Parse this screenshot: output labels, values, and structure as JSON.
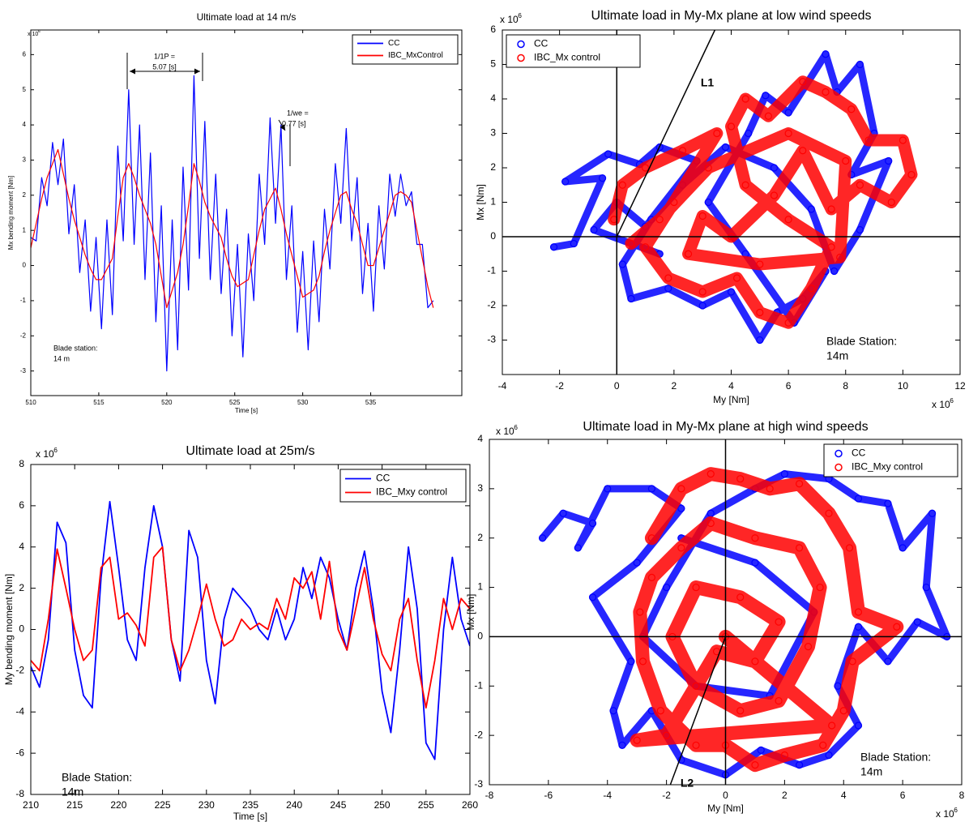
{
  "chart_data": [
    {
      "type": "line",
      "title": "Ultimate load at 14 m/s",
      "x_label": "Time [s]",
      "y_label": "Mx bending moment [Nm]",
      "y_multiplier": {
        "base": "x 10",
        "exponent": "6"
      },
      "xlim": [
        510,
        541.7
      ],
      "xticks": [
        510,
        515,
        520,
        525,
        530,
        535
      ],
      "ylim": [
        -3.7,
        6.7
      ],
      "yticks": [
        -3,
        -2,
        -1,
        0,
        1,
        2,
        3,
        4,
        5,
        6
      ],
      "grid": false,
      "legend": "upper right",
      "x": [
        510,
        510.4,
        510.8,
        511.2,
        511.6,
        512,
        512.4,
        512.8,
        513.2,
        513.6,
        514,
        514.4,
        514.8,
        515.2,
        515.6,
        516,
        516.4,
        516.8,
        517.2,
        517.6,
        518,
        518.4,
        518.8,
        519.2,
        519.6,
        520,
        520.4,
        520.8,
        521.2,
        521.6,
        522,
        522.4,
        522.8,
        523.2,
        523.6,
        524,
        524.4,
        524.8,
        525.2,
        525.6,
        526,
        526.4,
        526.8,
        527.2,
        527.6,
        528,
        528.4,
        528.8,
        529.2,
        529.6,
        530,
        530.4,
        530.8,
        531.2,
        531.6,
        532,
        532.4,
        532.8,
        533.2,
        533.6,
        534,
        534.4,
        534.8,
        535.2,
        535.6,
        536,
        536.4,
        536.8,
        537.2,
        537.6,
        538,
        538.4,
        538.8,
        539.2,
        539.6
      ],
      "series": [
        {
          "name": "CC",
          "color": "#0000ff",
          "values": [
            0.8,
            0.7,
            2.5,
            1.7,
            3.5,
            2.3,
            3.6,
            0.9,
            2.3,
            -0.2,
            1.3,
            -1.3,
            0.8,
            -1.8,
            1.3,
            -1.4,
            3.4,
            0.7,
            5.0,
            0.6,
            4.0,
            -0.4,
            3.2,
            -1.6,
            1.7,
            -3.0,
            1.3,
            -2.4,
            2.8,
            -0.7,
            5.4,
            0.2,
            4.1,
            -0.4,
            2.6,
            -0.8,
            1.6,
            -2.0,
            0.6,
            -2.6,
            0.9,
            -1.0,
            2.6,
            0.6,
            4.2,
            1.2,
            4.0,
            -0.4,
            1.7,
            -1.9,
            0.4,
            -2.4,
            0.7,
            -1.6,
            1.6,
            -0.1,
            2.9,
            1.2,
            3.9,
            0.7,
            2.5,
            -0.8,
            1.2,
            -1.3,
            1.7,
            -0.1,
            2.6,
            1.4,
            2.6,
            1.7,
            2.1,
            0.6,
            0.6,
            -1.2,
            -1.0
          ]
        },
        {
          "name": "IBC_MxControl",
          "color": "#ff0000",
          "values": [
            0.5,
            1.2,
            1.9,
            2.5,
            2.9,
            3.3,
            2.6,
            1.9,
            1.3,
            0.8,
            0.3,
            -0.1,
            -0.4,
            -0.4,
            -0.1,
            0.2,
            1.4,
            2.5,
            2.9,
            2.5,
            2.0,
            1.6,
            1.2,
            0.6,
            -0.3,
            -1.2,
            -0.7,
            -0.2,
            0.6,
            1.7,
            2.9,
            2.4,
            1.8,
            1.4,
            1.1,
            0.8,
            0.2,
            -0.3,
            -0.6,
            -0.5,
            -0.4,
            0.3,
            1.0,
            1.6,
            1.9,
            2.2,
            1.6,
            0.9,
            0.3,
            -0.3,
            -0.9,
            -0.8,
            -0.7,
            -0.3,
            0.4,
            1.0,
            1.5,
            2.0,
            2.1,
            1.6,
            1.2,
            0.6,
            0.0,
            0.0,
            0.5,
            1.0,
            1.5,
            2.0,
            2.1,
            2.0,
            1.8,
            1.0,
            0.2,
            -0.6,
            -1.2
          ]
        }
      ],
      "annotations": [
        [
          "1/1P =",
          "5.07 [s]"
        ],
        [
          "1/we =",
          "0.77 [s]"
        ],
        [
          "Blade station:",
          "14 m"
        ]
      ]
    },
    {
      "type": "scatter",
      "title": "Ultimate load in My-Mx plane at low wind speeds",
      "x_label": "My [Nm]",
      "y_label": "Mx [Nm]",
      "x_multiplier": {
        "base": "x 10",
        "exponent": "6"
      },
      "y_multiplier": {
        "base": "x 10",
        "exponent": "6"
      },
      "xlim": [
        -4,
        12
      ],
      "xticks": [
        -4,
        -2,
        0,
        2,
        4,
        6,
        8,
        10,
        12
      ],
      "ylim": [
        -4,
        6
      ],
      "yticks": [
        -3,
        -2,
        -1,
        0,
        1,
        2,
        3,
        4,
        5,
        6
      ],
      "grid": false,
      "zero_lines": true,
      "legend": "upper left",
      "series": [
        {
          "name": "CC",
          "color": "#0000ff",
          "x": [
            -2.2,
            -1.5,
            -0.5,
            -1.8,
            -0.3,
            0.8,
            1.5,
            2.8,
            1.2,
            0.2,
            0.5,
            1.8,
            3.0,
            4.0,
            5.0,
            5.6,
            6.5,
            7.3,
            6.2,
            4.5,
            3.2,
            4.6,
            5.2,
            6.0,
            7.3,
            7.7,
            8.5,
            9.0,
            8.2,
            9.5,
            8.5,
            7.6,
            6.8,
            5.5,
            3.8,
            2.3,
            1.0,
            0.0,
            -0.8,
            1.5
          ],
          "values": [
            -0.3,
            -0.2,
            1.7,
            1.6,
            2.4,
            2.1,
            2.6,
            2.2,
            0.5,
            -0.8,
            -1.8,
            -1.5,
            -2.0,
            -1.6,
            -3.0,
            -2.2,
            -1.8,
            -1.0,
            -2.5,
            -0.5,
            1.0,
            3.0,
            4.1,
            3.6,
            5.3,
            4.2,
            5.0,
            3.0,
            1.8,
            2.2,
            0.2,
            -1.0,
            0.8,
            2.0,
            2.6,
            1.5,
            0.3,
            1.0,
            0.2,
            -0.5
          ]
        },
        {
          "name": "IBC_Mx control",
          "color": "#ff0000",
          "x": [
            -0.1,
            0.2,
            1.0,
            2.3,
            3.5,
            2.0,
            1.0,
            1.8,
            3.0,
            4.2,
            5.0,
            6.0,
            6.8,
            7.5,
            6.0,
            4.5,
            4.0,
            4.5,
            5.3,
            6.5,
            7.3,
            8.2,
            8.8,
            10.0,
            10.3,
            9.6,
            8.5,
            7.5,
            6.5,
            5.5,
            4.0,
            3.0,
            2.5,
            5.0,
            7.8,
            8.0,
            6.0,
            3.2,
            1.5,
            0.5
          ],
          "values": [
            0.5,
            1.5,
            2.0,
            2.5,
            3.0,
            1.0,
            -0.3,
            -1.2,
            -1.6,
            -1.2,
            -2.2,
            -2.5,
            -1.5,
            -0.3,
            0.5,
            1.5,
            3.2,
            4.0,
            3.5,
            4.5,
            4.2,
            3.7,
            2.8,
            2.8,
            1.8,
            1.0,
            1.5,
            0.8,
            2.5,
            1.2,
            0.0,
            0.6,
            -0.5,
            -0.8,
            -0.6,
            2.2,
            3.0,
            2.0,
            0.5,
            -0.2
          ]
        }
      ],
      "reference_lines": [
        {
          "label": "L1",
          "x": [
            0,
            3.43
          ],
          "y": [
            0,
            6
          ]
        }
      ],
      "annotations": [
        [
          "Blade Station:",
          "14m"
        ]
      ]
    },
    {
      "type": "line",
      "title": "Ultimate load at 25m/s",
      "x_label": "Time [s]",
      "y_label": "My bending moment [Nm]",
      "y_multiplier": {
        "base": "x 10",
        "exponent": "6"
      },
      "xlim": [
        210,
        260
      ],
      "xticks": [
        210,
        215,
        220,
        225,
        230,
        235,
        240,
        245,
        250,
        255,
        260
      ],
      "ylim": [
        -8,
        8
      ],
      "yticks": [
        -8,
        -6,
        -4,
        -2,
        0,
        2,
        4,
        6,
        8
      ],
      "grid": false,
      "legend": "upper right",
      "x": [
        210,
        211,
        212,
        213,
        214,
        215,
        216,
        217,
        218,
        219,
        220,
        221,
        222,
        223,
        224,
        225,
        226,
        227,
        228,
        229,
        230,
        231,
        232,
        233,
        234,
        235,
        236,
        237,
        238,
        239,
        240,
        241,
        242,
        243,
        244,
        245,
        246,
        247,
        248,
        249,
        250,
        251,
        252,
        253,
        254,
        255,
        256,
        257,
        258,
        259,
        260
      ],
      "series": [
        {
          "name": "CC",
          "color": "#0000ff",
          "values": [
            -1.8,
            -2.8,
            -0.5,
            5.2,
            4.2,
            -1.0,
            -3.2,
            -3.8,
            2.5,
            6.2,
            3.0,
            -0.5,
            -1.5,
            3.0,
            6.0,
            4.0,
            -0.5,
            -2.5,
            4.8,
            3.5,
            -1.5,
            -3.6,
            0.5,
            2.0,
            1.5,
            1.0,
            0.0,
            -0.5,
            1.0,
            -0.5,
            0.5,
            3.0,
            1.5,
            3.5,
            2.5,
            0.5,
            -1.0,
            2.0,
            3.8,
            1.0,
            -3.0,
            -5.0,
            -1.0,
            4.0,
            1.0,
            -5.5,
            -6.3,
            0.0,
            3.5,
            0.5,
            -0.8
          ]
        },
        {
          "name": "IBC_Mxy control",
          "color": "#ff0000",
          "values": [
            -1.5,
            -2.0,
            0.5,
            3.9,
            2.0,
            0.0,
            -1.5,
            -1.0,
            3.0,
            3.5,
            0.5,
            0.8,
            0.2,
            -0.8,
            3.5,
            4.0,
            -0.5,
            -2.0,
            -1.0,
            0.5,
            2.2,
            0.5,
            -0.8,
            -0.5,
            0.5,
            0.0,
            0.3,
            0.0,
            1.5,
            0.5,
            2.5,
            2.0,
            2.8,
            0.5,
            3.3,
            0.0,
            -1.0,
            1.0,
            3.0,
            0.5,
            -1.2,
            -2.0,
            0.5,
            1.5,
            -1.5,
            -3.8,
            -1.5,
            1.5,
            0.0,
            1.5,
            1.0
          ]
        }
      ],
      "annotations": [
        [
          "Blade Station:",
          "14m"
        ]
      ]
    },
    {
      "type": "scatter",
      "title": "Ultimate load in My-Mx plane at high wind speeds",
      "x_label": "My [Nm]",
      "y_label": "Mx [Nm]",
      "x_multiplier": {
        "base": "x 10",
        "exponent": "6"
      },
      "y_multiplier": {
        "base": "x 10",
        "exponent": "6"
      },
      "xlim": [
        -8,
        8
      ],
      "xticks": [
        -8,
        -6,
        -4,
        -2,
        0,
        2,
        4,
        6,
        8
      ],
      "ylim": [
        -3,
        4
      ],
      "yticks": [
        -3,
        -2,
        -1,
        0,
        1,
        2,
        3,
        4
      ],
      "grid": false,
      "zero_lines": true,
      "legend": "upper right",
      "series": [
        {
          "name": "CC",
          "color": "#0000ff",
          "x": [
            -6.2,
            -5.5,
            -4.5,
            -5.0,
            -4.0,
            -2.5,
            -1.5,
            -3.0,
            -4.5,
            -3.2,
            -3.8,
            -3.5,
            -2.5,
            -1.5,
            0.0,
            1.2,
            2.5,
            3.5,
            4.5,
            3.8,
            4.5,
            5.5,
            6.5,
            7.5,
            6.8,
            7.0,
            6.0,
            5.5,
            4.5,
            3.5,
            2.0,
            1.0,
            -0.5,
            -2.0,
            -2.8,
            -1.0,
            1.5,
            3.0,
            1.0,
            -1.5
          ],
          "values": [
            2.0,
            2.5,
            2.3,
            1.8,
            3.0,
            3.0,
            2.6,
            1.5,
            0.8,
            -0.5,
            -1.5,
            -2.2,
            -1.5,
            -2.5,
            -2.8,
            -2.3,
            -2.6,
            -2.4,
            -1.8,
            -1.0,
            0.2,
            -0.5,
            0.3,
            0.0,
            1.0,
            2.5,
            1.8,
            2.7,
            2.8,
            3.2,
            3.3,
            3.0,
            2.5,
            1.0,
            0.0,
            -1.0,
            -1.2,
            0.5,
            1.5,
            2.0
          ]
        },
        {
          "name": "IBC_Mxy control",
          "color": "#ff0000",
          "x": [
            -2.5,
            -1.5,
            -0.5,
            0.5,
            1.5,
            2.5,
            3.5,
            4.2,
            4.5,
            5.8,
            4.3,
            4.0,
            3.3,
            2.0,
            1.0,
            0.0,
            -1.0,
            -2.2,
            -2.8,
            -2.9,
            -2.5,
            -1.5,
            -0.5,
            1.0,
            2.5,
            3.2,
            2.8,
            1.8,
            0.5,
            -1.0,
            -1.8,
            -1.0,
            0.5,
            1.8,
            1.0,
            -0.3,
            -2.0,
            -3.0,
            3.6,
            0.0
          ],
          "values": [
            2.0,
            3.0,
            3.3,
            3.2,
            3.0,
            3.1,
            2.5,
            1.8,
            0.5,
            0.2,
            -0.5,
            -1.5,
            -2.2,
            -2.4,
            -2.6,
            -2.2,
            -2.2,
            -1.5,
            -0.5,
            0.5,
            1.2,
            1.8,
            2.3,
            2.0,
            1.8,
            1.0,
            -0.2,
            -1.3,
            -1.5,
            -1.0,
            0.0,
            1.0,
            0.8,
            0.3,
            -0.5,
            -0.3,
            -2.0,
            -2.1,
            -1.8,
            0.0
          ]
        }
      ],
      "reference_lines": [
        {
          "label": "L2",
          "x": [
            0,
            -1.87
          ],
          "y": [
            0,
            -3
          ]
        }
      ],
      "annotations": [
        [
          "Blade Station:",
          "14m"
        ]
      ]
    }
  ]
}
